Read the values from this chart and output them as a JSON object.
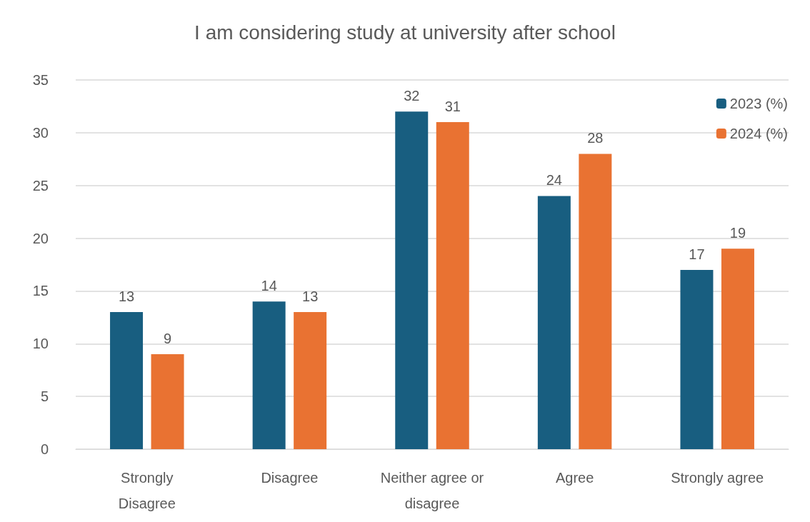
{
  "chart_data": {
    "type": "bar",
    "title": "I am considering study at university after school",
    "categories": [
      "Strongly\nDisagree",
      "Disagree",
      "Neither agree or\ndisagree",
      "Agree",
      "Strongly agree"
    ],
    "series": [
      {
        "name": "2023 (%)",
        "color": "#185e80",
        "values": [
          13,
          14,
          32,
          24,
          17
        ]
      },
      {
        "name": "2024 (%)",
        "color": "#e97232",
        "values": [
          9,
          13,
          31,
          28,
          19
        ]
      }
    ],
    "ylim": [
      0,
      35
    ],
    "yticks": [
      0,
      5,
      10,
      15,
      20,
      25,
      30,
      35
    ],
    "grid": "y",
    "legend": "top right",
    "data_labels": true
  }
}
